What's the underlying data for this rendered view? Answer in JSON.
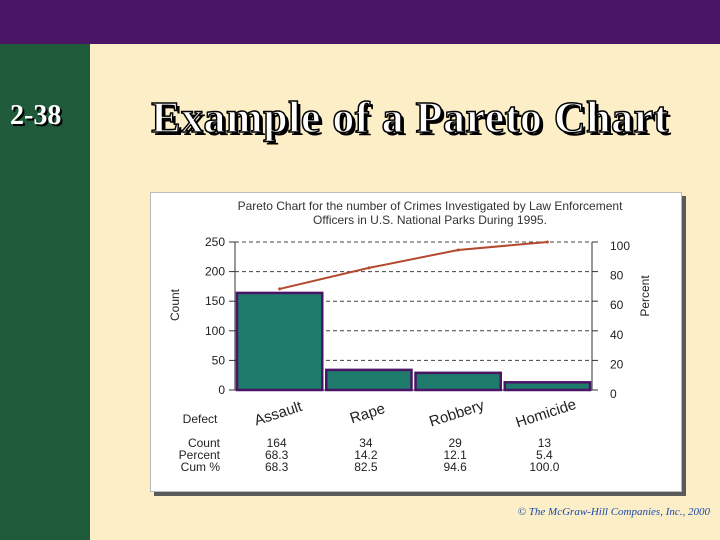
{
  "slide": {
    "number": "2-38",
    "title": "Example of a Pareto Chart",
    "copyright": "© The McGraw-Hill Companies, Inc., 2000"
  },
  "colors": {
    "topbar": "#4b1566",
    "sidebar": "#1f5a3a",
    "background": "#fcefc8",
    "bar_fill": "#1e7a6a",
    "bar_stroke": "#4b1566",
    "line": "#b34a2e"
  },
  "chart_data": {
    "type": "bar",
    "title": "Pareto Chart for the number of Crimes Investigated by Law Enforcement Officers in U.S. National Parks During 1995.",
    "categories": [
      "Assault",
      "Rape",
      "Robbery",
      "Homicide"
    ],
    "values": [
      164,
      34,
      29,
      13
    ],
    "ylabel": "Count",
    "ylim": [
      0,
      250
    ],
    "yticks": [
      "250",
      "200",
      "150",
      "100",
      "50",
      "0"
    ],
    "y2label": "Percent",
    "y2lim": [
      0,
      100
    ],
    "y2ticks": [
      "100",
      "80",
      "60",
      "40",
      "20",
      "0"
    ],
    "cumulative_percent": [
      68.3,
      82.5,
      94.6,
      100.0
    ],
    "grid": true,
    "table": {
      "header_label": "Defect",
      "row_labels": [
        "Count",
        "Percent",
        "Cum %"
      ],
      "count": [
        "164",
        "34",
        "29",
        "13"
      ],
      "percent": [
        "68.3",
        "14.2",
        "12.1",
        "5.4"
      ],
      "cum": [
        "68.3",
        "82.5",
        "94.6",
        "100.0"
      ]
    }
  }
}
